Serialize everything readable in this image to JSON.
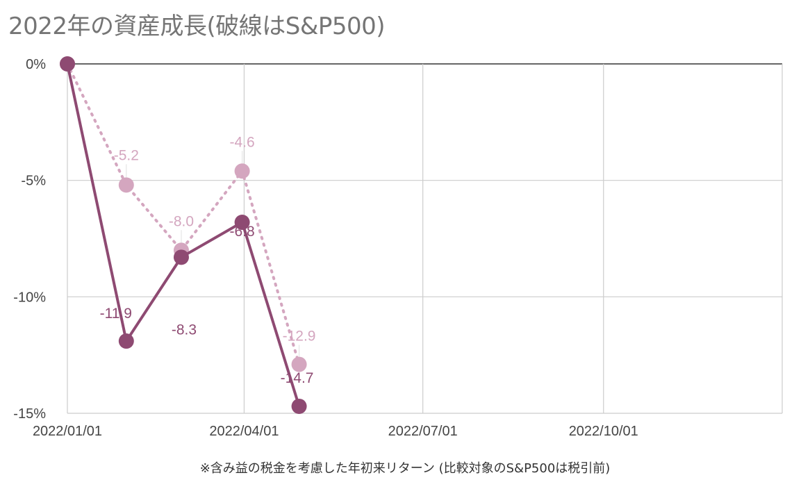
{
  "chart_data": {
    "type": "line",
    "title": "2022年の資産成長(破線はS&P500)",
    "note": "※含み益の税金を考慮した年初来リターン (比較対象のS&P500は税引前)",
    "y_axis": {
      "min": -15,
      "max": 0,
      "ticks": [
        0,
        -5,
        -10,
        -15
      ],
      "tick_labels": [
        "0%",
        "-5%",
        "-10%",
        "-15%"
      ]
    },
    "x_axis": {
      "min": "2022-01-01",
      "max": "2022-12-31",
      "ticks": [
        "2022-01-01",
        "2022-04-01",
        "2022-07-01",
        "2022-10-01",
        "2022-12-31"
      ],
      "tick_labels": [
        "2022/01/01",
        "2022/04/01",
        "2022/07/01",
        "2022/10/01",
        ""
      ]
    },
    "grid": true,
    "series": [
      {
        "style": "solid",
        "color": "#8e4a72",
        "points": [
          {
            "x": "2022-01-01",
            "y": 0,
            "label": ""
          },
          {
            "x": "2022-01-31",
            "y": -11.9,
            "label": "-11.9"
          },
          {
            "x": "2022-02-28",
            "y": -8.3,
            "label": "-8.3"
          },
          {
            "x": "2022-03-31",
            "y": -6.8,
            "label": "-6.8"
          },
          {
            "x": "2022-04-29",
            "y": -14.7,
            "label": "-14.7"
          }
        ]
      },
      {
        "style": "dotted",
        "color": "#d4a6bf",
        "points": [
          {
            "x": "2022-01-01",
            "y": 0,
            "label": ""
          },
          {
            "x": "2022-01-31",
            "y": -5.2,
            "label": "-5.2"
          },
          {
            "x": "2022-02-28",
            "y": -8.0,
            "label": "-8.0"
          },
          {
            "x": "2022-03-31",
            "y": -4.6,
            "label": "-4.6"
          },
          {
            "x": "2022-04-29",
            "y": -12.9,
            "label": "-12.9"
          }
        ]
      }
    ]
  }
}
